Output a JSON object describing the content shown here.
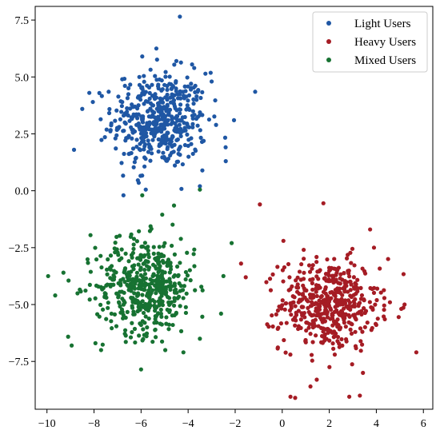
{
  "chart_data": {
    "type": "scatter",
    "title": "",
    "xlabel": "",
    "ylabel": "",
    "xlim": [
      -10.5,
      6.4
    ],
    "ylim": [
      -9.6,
      8.1
    ],
    "x_ticks": [
      -10,
      -8,
      -6,
      -4,
      -2,
      0,
      2,
      4,
      6
    ],
    "x_tick_labels": [
      "−10",
      "−8",
      "−6",
      "−4",
      "−2",
      "0",
      "2",
      "4",
      "6"
    ],
    "y_ticks": [
      7.5,
      5.0,
      2.5,
      0.0,
      -2.5,
      -5.0,
      -7.5
    ],
    "y_tick_labels": [
      "7.5",
      "5.0",
      "2.5",
      "0.0",
      "−2.5",
      "−5.0",
      "−7.5"
    ],
    "grid": false,
    "legend_position": "top-right",
    "series": [
      {
        "name": "Light Users",
        "color": "#1f57a4",
        "center": [
          -5.2,
          3.1
        ],
        "spread": [
          1.0,
          1.05
        ],
        "points": [
          [
            -4.35,
            7.65
          ],
          [
            -1.15,
            4.35
          ],
          [
            -8.85,
            1.8
          ],
          [
            -6.1,
            0.35
          ],
          [
            -5.8,
            0.05
          ],
          [
            -3.5,
            0.2
          ],
          [
            -2.4,
            1.3
          ],
          [
            -8.2,
            4.3
          ],
          [
            -5.35,
            6.25
          ],
          [
            -5.95,
            5.9
          ],
          [
            -4.5,
            5.7
          ],
          [
            -2.05,
            3.1
          ],
          [
            -8.05,
            3.9
          ],
          [
            -6.8,
            4.9
          ],
          [
            -3.0,
            4.8
          ]
        ]
      },
      {
        "name": "Heavy Users",
        "color": "#a51c24",
        "center": [
          2.0,
          -5.0
        ],
        "spread": [
          1.05,
          1.0
        ],
        "points": [
          [
            -0.95,
            -0.6
          ],
          [
            5.7,
            -7.1
          ],
          [
            0.35,
            -9.05
          ],
          [
            0.55,
            -9.1
          ],
          [
            2.85,
            -9.05
          ],
          [
            3.3,
            -9.0
          ],
          [
            1.75,
            -0.55
          ],
          [
            -1.75,
            -3.2
          ],
          [
            1.2,
            -8.6
          ],
          [
            4.95,
            -5.55
          ],
          [
            -1.55,
            -3.8
          ],
          [
            3.9,
            -2.5
          ],
          [
            5.2,
            -5.0
          ],
          [
            0.05,
            -2.2
          ],
          [
            4.5,
            -3.0
          ]
        ]
      },
      {
        "name": "Mixed Users",
        "color": "#177232",
        "center": [
          -5.8,
          -4.2
        ],
        "spread": [
          1.05,
          1.05
        ],
        "points": [
          [
            -5.95,
            -0.2
          ],
          [
            -4.6,
            -0.65
          ],
          [
            -3.5,
            0.05
          ],
          [
            -9.95,
            -3.75
          ],
          [
            -9.65,
            -4.6
          ],
          [
            -8.95,
            -6.8
          ],
          [
            -6.0,
            -7.85
          ],
          [
            -2.15,
            -2.3
          ],
          [
            -3.5,
            -6.5
          ],
          [
            -8.15,
            -1.95
          ],
          [
            -7.7,
            -7.0
          ],
          [
            -5.1,
            -1.05
          ],
          [
            -9.3,
            -3.6
          ],
          [
            -4.2,
            -7.1
          ],
          [
            -2.6,
            -5.4
          ]
        ]
      }
    ]
  }
}
